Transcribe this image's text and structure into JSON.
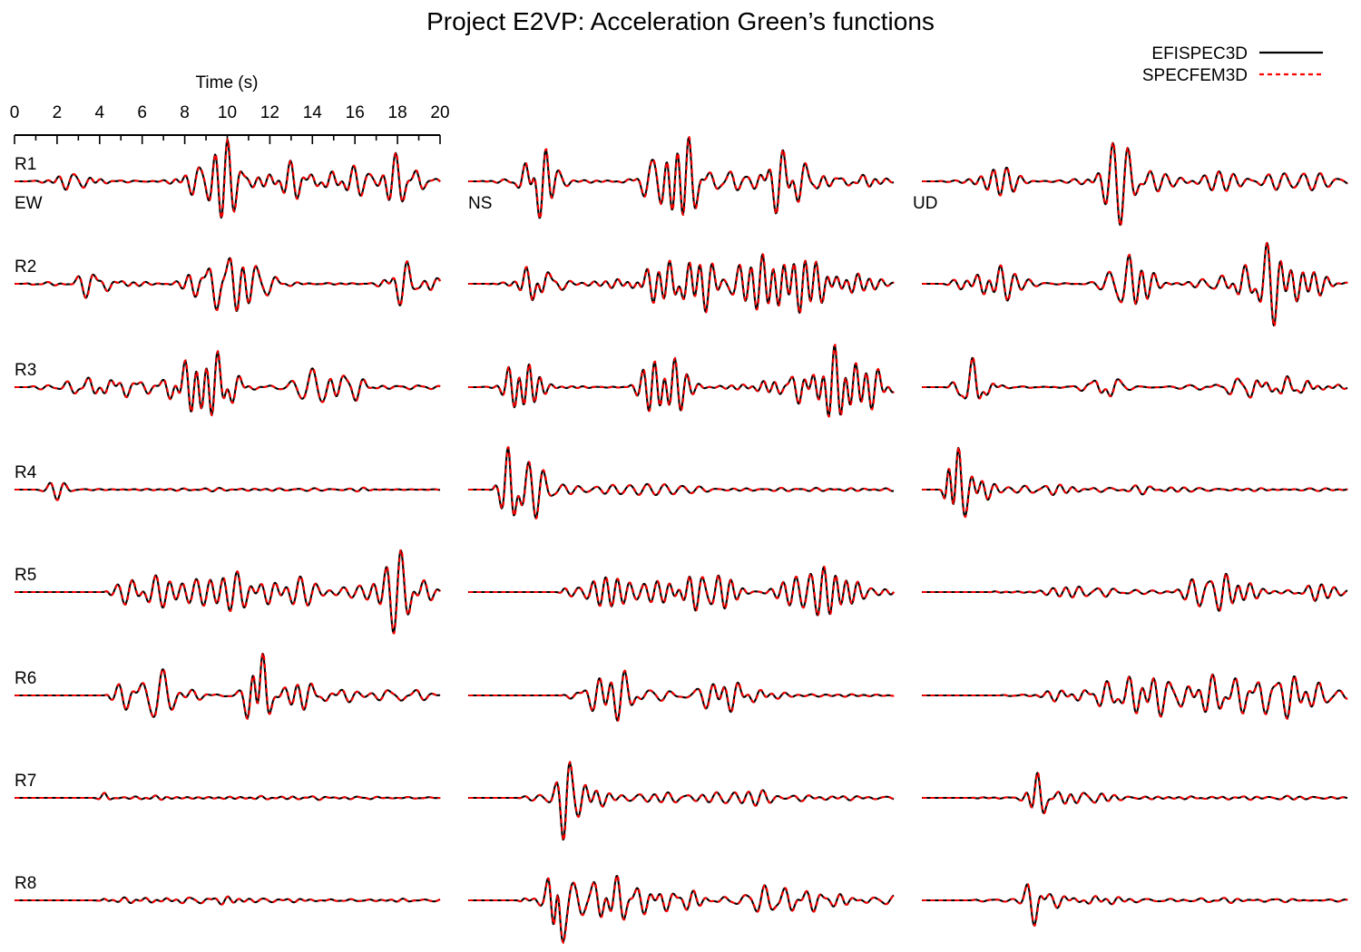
{
  "chart_data": {
    "type": "line",
    "title": "Project E2VP: Acceleration Green’s functions",
    "xlabel": "Time (s)",
    "xlim": [
      0,
      20
    ],
    "x_ticks": [
      "0",
      "2",
      "4",
      "6",
      "8",
      "10",
      "12",
      "14",
      "16",
      "18",
      "20"
    ],
    "components": [
      "EW",
      "NS",
      "UD"
    ],
    "receivers": [
      "R1",
      "R2",
      "R3",
      "R4",
      "R5",
      "R6",
      "R7",
      "R8"
    ],
    "series": [
      {
        "name": "EFISPEC3D",
        "color": "#000000",
        "style": "solid"
      },
      {
        "name": "SPECFEM3D",
        "color": "#ff0000",
        "style": "dashed"
      }
    ],
    "grid": false,
    "legend_position": "top-right"
  }
}
